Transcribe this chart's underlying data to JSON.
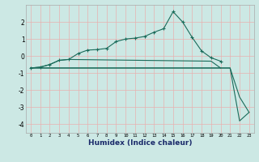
{
  "title": "",
  "xlabel": "Humidex (Indice chaleur)",
  "background_color": "#cce8e4",
  "grid_color": "#e8b0b0",
  "line_color": "#1a6b5a",
  "xlim": [
    -0.5,
    23.5
  ],
  "ylim": [
    -4.5,
    3.0
  ],
  "x": [
    0,
    1,
    2,
    3,
    4,
    5,
    6,
    7,
    8,
    9,
    10,
    11,
    12,
    13,
    14,
    15,
    16,
    17,
    18,
    19,
    20,
    21,
    22,
    23
  ],
  "line1_x": [
    0,
    1,
    2,
    3,
    4,
    5,
    6,
    7,
    8,
    9,
    10,
    11,
    12,
    13,
    14,
    15,
    16,
    17,
    18,
    19,
    20
  ],
  "line1_y": [
    -0.7,
    -0.65,
    -0.5,
    -0.25,
    -0.2,
    0.15,
    0.35,
    0.38,
    0.45,
    0.85,
    1.0,
    1.05,
    1.15,
    1.4,
    1.6,
    2.6,
    2.0,
    1.1,
    0.3,
    -0.1,
    -0.3
  ],
  "line2_x": [
    0,
    1,
    2,
    3,
    4,
    19,
    20
  ],
  "line2_y": [
    -0.7,
    -0.65,
    -0.5,
    -0.25,
    -0.2,
    -0.3,
    -0.7
  ],
  "line3_x": [
    0,
    21,
    22,
    23
  ],
  "line3_y": [
    -0.7,
    -0.7,
    -2.4,
    -3.3
  ],
  "line4_x": [
    0,
    21,
    22,
    23
  ],
  "line4_y": [
    -0.7,
    -0.7,
    -3.8,
    -3.3
  ],
  "yticks": [
    -4,
    -3,
    -2,
    -1,
    0,
    1,
    2
  ],
  "xticks": [
    0,
    1,
    2,
    3,
    4,
    5,
    6,
    7,
    8,
    9,
    10,
    11,
    12,
    13,
    14,
    15,
    16,
    17,
    18,
    19,
    20,
    21,
    22,
    23
  ]
}
